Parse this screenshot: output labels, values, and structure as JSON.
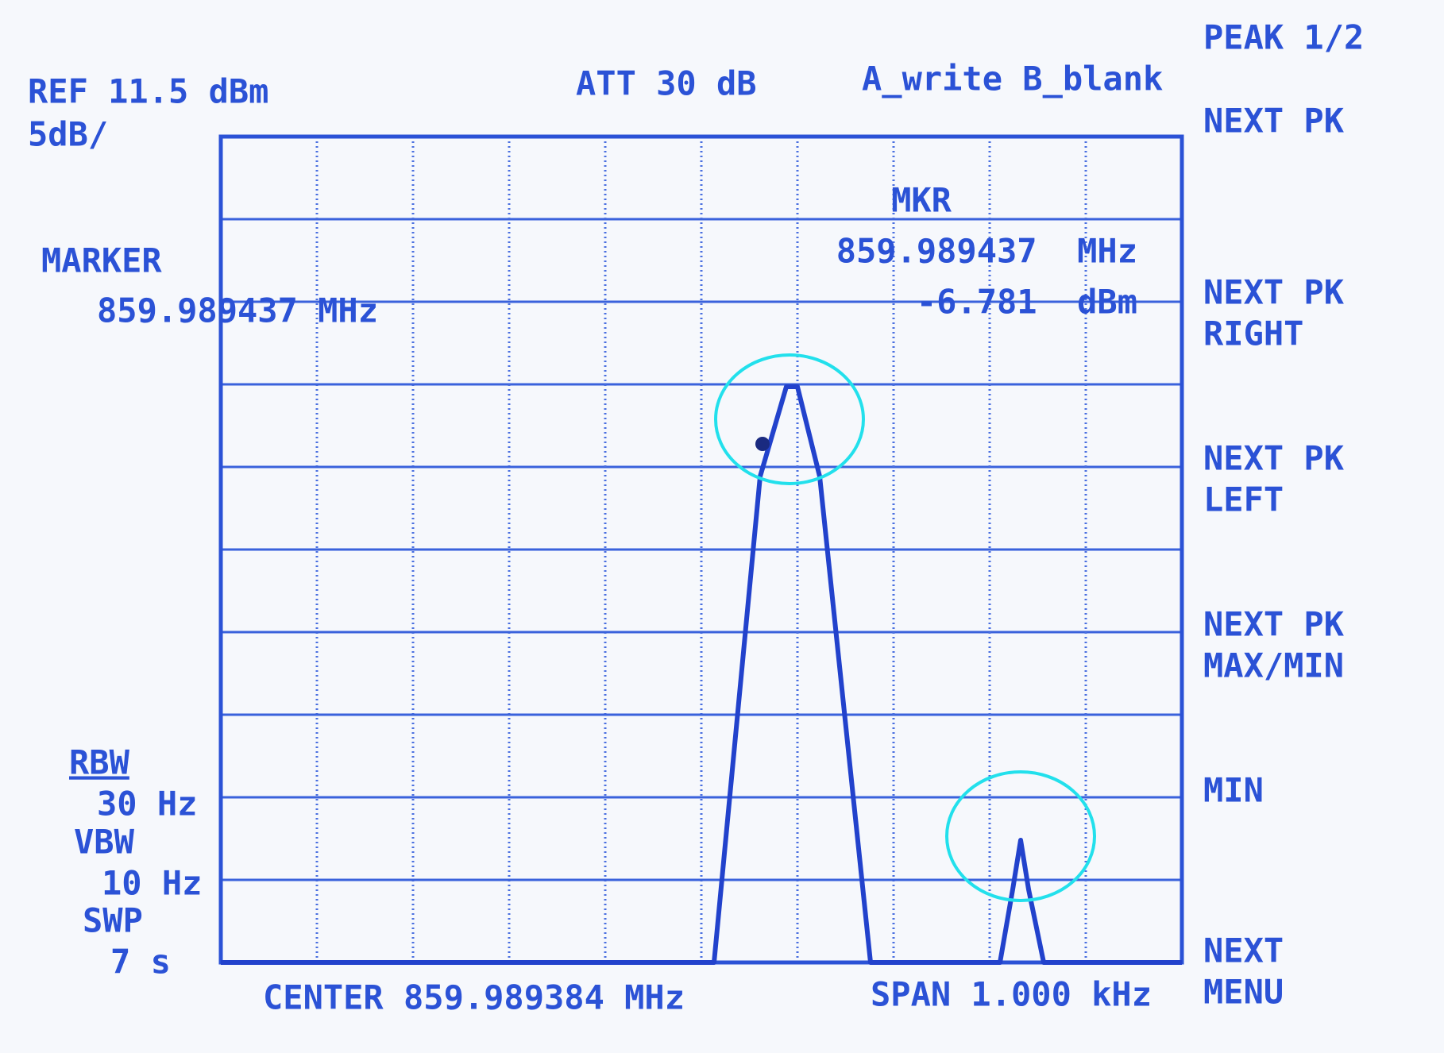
{
  "header": {
    "ref": "REF 11.5 dBm",
    "scale": "5dB/",
    "att": "ATT 30 dB",
    "trace": "A_write B_blank"
  },
  "marker": {
    "label": "MARKER",
    "freq": "859.989437 MHz"
  },
  "mkr": {
    "label": "MKR",
    "freq": "859.989437  MHz",
    "level": "-6.781  dBm"
  },
  "bandwidth": {
    "rbw_label": "RBW",
    "rbw": "30 Hz",
    "vbw_label": "VBW",
    "vbw": "10 Hz",
    "swp_label": "SWP",
    "swp": "7 s"
  },
  "footer": {
    "center": "CENTER 859.989384 MHz",
    "span": "SPAN 1.000 kHz"
  },
  "softkeys": [
    [
      "PEAK 1/2"
    ],
    [
      "NEXT PK"
    ],
    [
      "NEXT PK",
      "RIGHT"
    ],
    [
      "NEXT PK",
      "LEFT"
    ],
    [
      "NEXT PK",
      "MAX/MIN"
    ],
    [
      "MIN"
    ],
    [
      "NEXT",
      "MENU"
    ]
  ]
}
